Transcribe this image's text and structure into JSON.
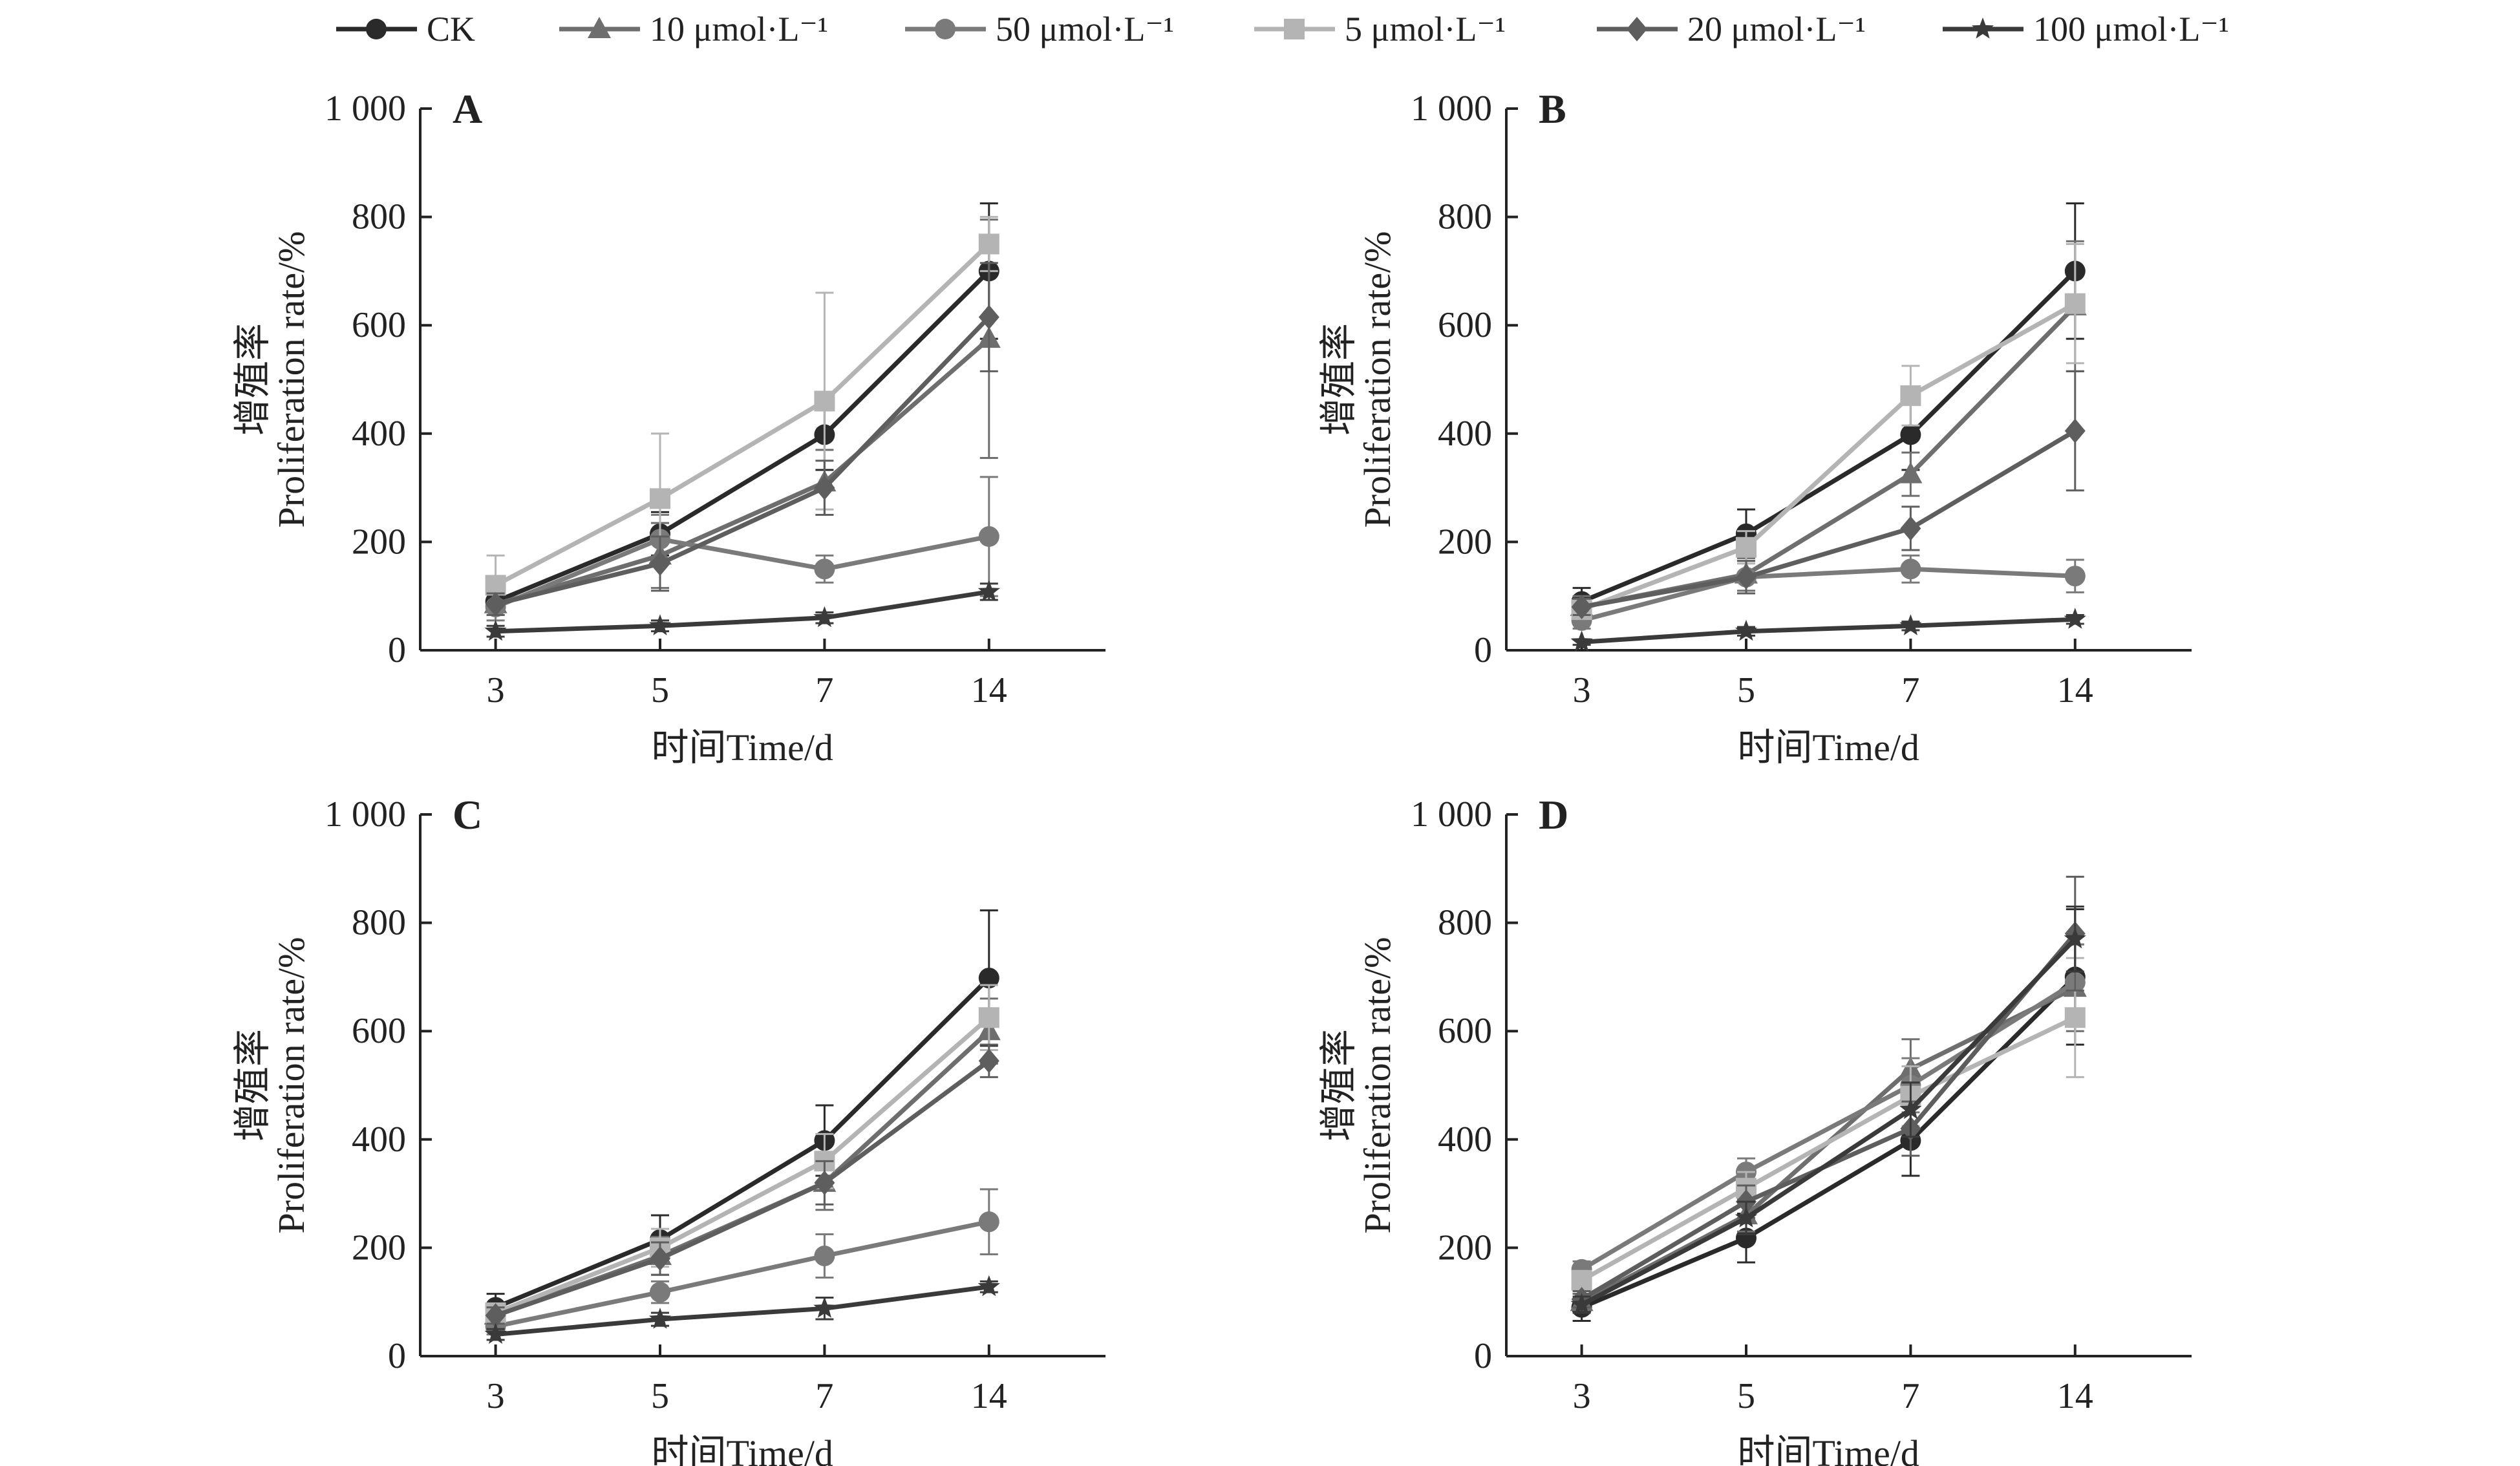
{
  "legend": {
    "items": [
      {
        "label": "CK",
        "color": "#2a2a2a",
        "marker": "circle"
      },
      {
        "label": "10 μmol·L⁻¹",
        "color": "#6e6e6e",
        "marker": "triangle"
      },
      {
        "label": "50 μmol·L⁻¹",
        "color": "#7a7a7a",
        "marker": "circle"
      },
      {
        "label": "5 μmol·L⁻¹",
        "color": "#b4b4b4",
        "marker": "square"
      },
      {
        "label": "20 μmol·L⁻¹",
        "color": "#5e5e5e",
        "marker": "diamond"
      },
      {
        "label": "100 μmol·L⁻¹",
        "color": "#3a3a3a",
        "marker": "star"
      }
    ]
  },
  "chart_data": [
    {
      "type": "line",
      "panel_label": "A",
      "xlabel": "时间Time/d",
      "ylabel_cn": "增殖率",
      "ylabel": "Proliferation rate/%",
      "categories": [
        "3",
        "5",
        "7",
        "14"
      ],
      "ylim": [
        0,
        1000
      ],
      "yticks": [
        "0",
        "200",
        "400",
        "600",
        "800",
        "1 000"
      ],
      "series": [
        {
          "name": "CK",
          "values": [
            90,
            215,
            398,
            700
          ],
          "errors": [
            25,
            40,
            65,
            125
          ]
        },
        {
          "name": "10 μmol·L⁻¹",
          "values": [
            85,
            175,
            310,
            575
          ],
          "errors": [
            20,
            60,
            60,
            220
          ]
        },
        {
          "name": "50 μmol·L⁻¹",
          "values": [
            80,
            205,
            150,
            210
          ],
          "errors": [
            25,
            45,
            25,
            110
          ]
        },
        {
          "name": "5 μmol·L⁻¹",
          "values": [
            120,
            280,
            460,
            750
          ],
          "errors": [
            55,
            120,
            200,
            50
          ]
        },
        {
          "name": "20 μmol·L⁻¹",
          "values": [
            85,
            160,
            300,
            615
          ],
          "errors": [
            20,
            50,
            50,
            100
          ]
        },
        {
          "name": "100 μmol·L⁻¹",
          "values": [
            35,
            45,
            60,
            108
          ],
          "errors": [
            10,
            10,
            10,
            15
          ]
        }
      ]
    },
    {
      "type": "line",
      "panel_label": "B",
      "xlabel": "时间Time/d",
      "ylabel_cn": "增殖率",
      "ylabel": "Proliferation rate/%",
      "categories": [
        "3",
        "5",
        "7",
        "14"
      ],
      "ylim": [
        0,
        1000
      ],
      "yticks": [
        "0",
        "200",
        "400",
        "600",
        "800",
        "1 000"
      ],
      "series": [
        {
          "name": "CK",
          "values": [
            90,
            215,
            398,
            700
          ],
          "errors": [
            25,
            45,
            65,
            125
          ]
        },
        {
          "name": "10 μmol·L⁻¹",
          "values": [
            80,
            140,
            325,
            635
          ],
          "errors": [
            20,
            30,
            40,
            120
          ]
        },
        {
          "name": "50 μmol·L⁻¹",
          "values": [
            55,
            135,
            150,
            137
          ],
          "errors": [
            15,
            30,
            25,
            30
          ]
        },
        {
          "name": "5 μmol·L⁻¹",
          "values": [
            75,
            190,
            470,
            640
          ],
          "errors": [
            15,
            30,
            55,
            110
          ]
        },
        {
          "name": "20 μmol·L⁻¹",
          "values": [
            80,
            135,
            225,
            405
          ],
          "errors": [
            15,
            30,
            40,
            110
          ]
        },
        {
          "name": "100 μmol·L⁻¹",
          "values": [
            15,
            35,
            45,
            57
          ],
          "errors": [
            5,
            8,
            8,
            8
          ]
        }
      ]
    },
    {
      "type": "line",
      "panel_label": "C",
      "xlabel": "时间Time/d",
      "ylabel_cn": "增殖率",
      "ylabel": "Proliferation rate/%",
      "categories": [
        "3",
        "5",
        "7",
        "14"
      ],
      "ylim": [
        0,
        1000
      ],
      "yticks": [
        "0",
        "200",
        "400",
        "600",
        "800",
        "1 000"
      ],
      "series": [
        {
          "name": "CK",
          "values": [
            90,
            215,
            398,
            698
          ],
          "errors": [
            25,
            45,
            65,
            125
          ]
        },
        {
          "name": "10 μmol·L⁻¹",
          "values": [
            75,
            185,
            320,
            600
          ],
          "errors": [
            15,
            35,
            50,
            60
          ]
        },
        {
          "name": "50 μmol·L⁻¹",
          "values": [
            55,
            118,
            185,
            248
          ],
          "errors": [
            15,
            20,
            40,
            60
          ]
        },
        {
          "name": "5 μmol·L⁻¹",
          "values": [
            80,
            200,
            360,
            625
          ],
          "errors": [
            15,
            35,
            50,
            60
          ]
        },
        {
          "name": "20 μmol·L⁻¹",
          "values": [
            75,
            180,
            320,
            545
          ],
          "errors": [
            15,
            30,
            40,
            30
          ]
        },
        {
          "name": "100 μmol·L⁻¹",
          "values": [
            40,
            68,
            88,
            128
          ],
          "errors": [
            10,
            12,
            20,
            10
          ]
        }
      ]
    },
    {
      "type": "line",
      "panel_label": "D",
      "xlabel": "时间Time/d",
      "ylabel_cn": "增殖率",
      "ylabel": "Proliferation rate/%",
      "categories": [
        "3",
        "5",
        "7",
        "14"
      ],
      "ylim": [
        0,
        1000
      ],
      "yticks": [
        "0",
        "200",
        "400",
        "600",
        "800",
        "1 000"
      ],
      "series": [
        {
          "name": "CK",
          "values": [
            90,
            218,
            398,
            700
          ],
          "errors": [
            25,
            45,
            65,
            125
          ]
        },
        {
          "name": "10 μmol·L⁻¹",
          "values": [
            100,
            260,
            530,
            680
          ],
          "errors": [
            15,
            30,
            55,
            80
          ]
        },
        {
          "name": "50 μmol·L⁻¹",
          "values": [
            160,
            340,
            500,
            690
          ],
          "errors": [
            15,
            25,
            50,
            70
          ]
        },
        {
          "name": "5 μmol·L⁻¹",
          "values": [
            140,
            310,
            480,
            625
          ],
          "errors": [
            15,
            30,
            55,
            110
          ]
        },
        {
          "name": "20 μmol·L⁻¹",
          "values": [
            105,
            285,
            420,
            780
          ],
          "errors": [
            15,
            30,
            50,
            105
          ]
        },
        {
          "name": "100 μmol·L⁻¹",
          "values": [
            95,
            255,
            455,
            770
          ],
          "errors": [
            15,
            30,
            50,
            60
          ]
        }
      ]
    }
  ]
}
